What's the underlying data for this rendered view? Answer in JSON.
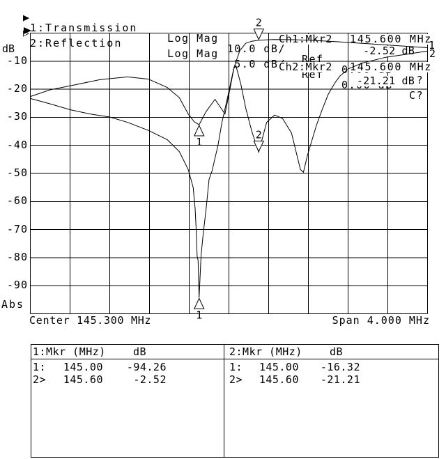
{
  "display": {
    "colors": {
      "background": "#ffffff",
      "foreground": "#000000"
    },
    "channels": [
      {
        "prefix": "▶",
        "title": "1:Transmission",
        "format": "Log Mag",
        "scale": "10.0 dB/",
        "ref_label": "Ref",
        "ref": "0.00 dB",
        "status": "C?"
      },
      {
        "prefix": "▷",
        "title": "2:Reflection",
        "format": "Log Mag",
        "scale": "5.0 dB/",
        "ref_label": "Ref",
        "ref": "0.00 dB",
        "status": "C?"
      }
    ],
    "marker_readouts": [
      {
        "label": "Ch1:Mkr2",
        "freq": "145.600 MHz",
        "value": "-2.52 dB"
      },
      {
        "label": "Ch2:Mkr2",
        "freq": "145.600 MHz",
        "value": "-21.21 dB"
      }
    ],
    "y_axis": {
      "unit": "dB",
      "ticks": [
        "-10",
        "-20",
        "-30",
        "-40",
        "-50",
        "-60",
        "-70",
        "-80",
        "-90"
      ],
      "bottom_label": "Abs"
    },
    "x_axis": {
      "center_label": "Center 145.300 MHz",
      "span_label": "Span 4.000 MHz"
    },
    "trace_end_labels": [
      "1",
      "2"
    ],
    "marker_table": {
      "tables": [
        {
          "header": "1:Mkr (MHz)",
          "unit_header": "dB",
          "rows": [
            [
              "1:",
              "145.00",
              "-94.26"
            ],
            [
              "2>",
              "145.60",
              "-2.52"
            ]
          ]
        },
        {
          "header": "2:Mkr (MHz)",
          "unit_header": "dB",
          "rows": [
            [
              "1:",
              "145.00",
              "-16.32"
            ],
            [
              "2>",
              "145.60",
              "-21.21"
            ]
          ]
        }
      ]
    }
  },
  "chart_data": {
    "type": "line",
    "x_center_MHz": 145.3,
    "x_span_MHz": 4.0,
    "x_range_MHz": [
      143.3,
      147.3
    ],
    "grid": "on",
    "series": [
      {
        "name": "Transmission",
        "channel": 1,
        "db_per_div": 10,
        "ref_db": 0.0,
        "units": "dB",
        "points": [
          [
            143.3,
            -23.3
          ],
          [
            143.5,
            -25.2
          ],
          [
            143.7,
            -27.3
          ],
          [
            143.9,
            -28.8
          ],
          [
            144.1,
            -29.9
          ],
          [
            144.28,
            -31.8
          ],
          [
            144.49,
            -34.7
          ],
          [
            144.68,
            -38.0
          ],
          [
            144.8,
            -42.2
          ],
          [
            144.89,
            -48.6
          ],
          [
            144.94,
            -55.0
          ],
          [
            144.96,
            -62.5
          ],
          [
            144.97,
            -70.0
          ],
          [
            144.98,
            -79.5
          ],
          [
            144.99,
            -81.0
          ],
          [
            145.0,
            -94.26
          ],
          [
            145.02,
            -79.0
          ],
          [
            145.04,
            -72.0
          ],
          [
            145.07,
            -62.8
          ],
          [
            145.1,
            -52.1
          ],
          [
            145.13,
            -49.1
          ],
          [
            145.19,
            -40.0
          ],
          [
            145.23,
            -31.8
          ],
          [
            145.29,
            -22.3
          ],
          [
            145.35,
            -12.4
          ],
          [
            145.41,
            -6.2
          ],
          [
            145.47,
            -3.6
          ],
          [
            145.53,
            -2.9
          ],
          [
            145.6,
            -2.52
          ],
          [
            145.75,
            -2.3
          ],
          [
            145.95,
            -2.35
          ],
          [
            146.15,
            -2.6
          ],
          [
            146.4,
            -3.1
          ],
          [
            146.7,
            -3.8
          ],
          [
            147.0,
            -4.5
          ],
          [
            147.3,
            -5.2
          ]
        ]
      },
      {
        "name": "Reflection",
        "channel": 2,
        "db_per_div": 5,
        "ref_db": 0.0,
        "units": "dB",
        "points": [
          [
            143.3,
            -11.3
          ],
          [
            143.5,
            -10.1
          ],
          [
            143.7,
            -9.4
          ],
          [
            144.0,
            -8.3
          ],
          [
            144.28,
            -7.8
          ],
          [
            144.49,
            -8.2
          ],
          [
            144.68,
            -9.7
          ],
          [
            144.8,
            -11.5
          ],
          [
            144.89,
            -14.4
          ],
          [
            144.95,
            -15.8
          ],
          [
            145.0,
            -16.32
          ],
          [
            145.07,
            -14.0
          ],
          [
            145.16,
            -11.8
          ],
          [
            145.26,
            -14.4
          ],
          [
            145.3,
            -10.9
          ],
          [
            145.35,
            -6.3
          ],
          [
            145.37,
            -5.8
          ],
          [
            145.42,
            -9.1
          ],
          [
            145.47,
            -13.4
          ],
          [
            145.53,
            -17.5
          ],
          [
            145.6,
            -21.21
          ],
          [
            145.68,
            -15.9
          ],
          [
            145.76,
            -14.6
          ],
          [
            145.84,
            -15.2
          ],
          [
            145.93,
            -17.8
          ],
          [
            146.02,
            -24.3
          ],
          [
            146.05,
            -24.8
          ],
          [
            146.09,
            -21.8
          ],
          [
            146.18,
            -16.5
          ],
          [
            146.24,
            -13.6
          ],
          [
            146.3,
            -10.9
          ],
          [
            146.37,
            -8.8
          ],
          [
            146.42,
            -7.6
          ],
          [
            146.51,
            -6.3
          ],
          [
            146.65,
            -5.3
          ],
          [
            146.88,
            -4.3
          ],
          [
            147.12,
            -3.7
          ],
          [
            147.3,
            -3.2
          ]
        ]
      }
    ],
    "markers": [
      {
        "channel": 1,
        "num": "1",
        "MHz": 145.0,
        "dB": -94.26,
        "dir": "up"
      },
      {
        "channel": 1,
        "num": "2",
        "MHz": 145.6,
        "dB": -2.52,
        "dir": "down"
      },
      {
        "channel": 2,
        "num": "1",
        "MHz": 145.0,
        "dB": -16.32,
        "dir": "up"
      },
      {
        "channel": 2,
        "num": "2",
        "MHz": 145.6,
        "dB": -21.21,
        "dir": "down"
      }
    ]
  }
}
